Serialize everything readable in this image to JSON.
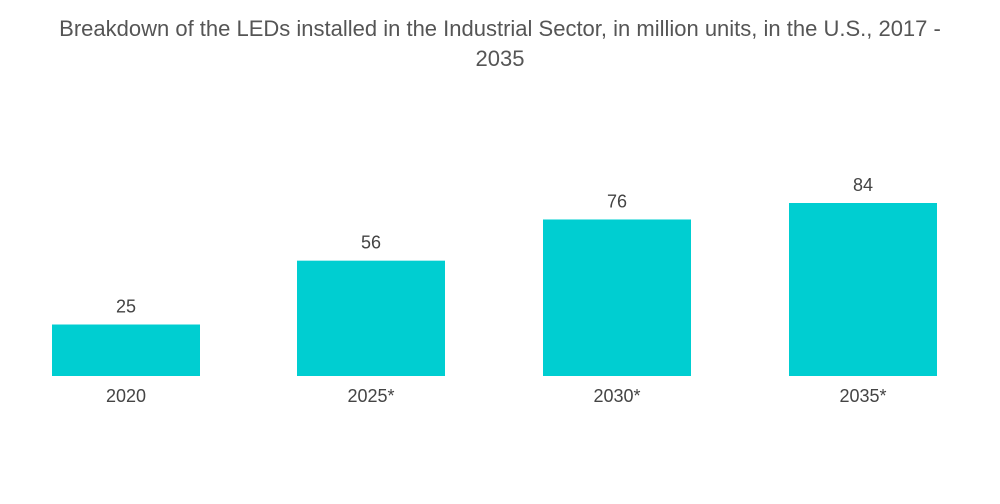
{
  "chart_data": {
    "type": "bar",
    "title": "Breakdown of the LEDs installed in the Industrial Sector, in million units, in the U.S., 2017 - 2035",
    "title_line1": "Breakdown of the LEDs installed in the Industrial Sector, in million units, in the U.S., 2017 -",
    "title_line2": "2035",
    "categories": [
      "2020",
      "2025*",
      "2030*",
      "2035*"
    ],
    "values": [
      25,
      56,
      76,
      84
    ],
    "data_labels": [
      "25",
      "56",
      "76",
      "84"
    ],
    "xlabel": "",
    "ylabel": "",
    "ylim": [
      0,
      84
    ],
    "grid": false,
    "legend": "none",
    "bar_color": "#00CED1"
  }
}
